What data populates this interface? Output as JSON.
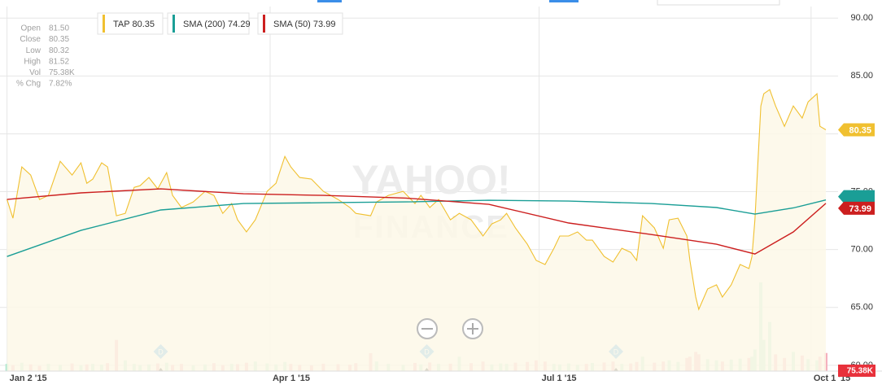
{
  "chart_data": {
    "type": "line",
    "quote": [
      {
        "label": "Open",
        "value": "81.50"
      },
      {
        "label": "Close",
        "value": "80.35"
      },
      {
        "label": "Low",
        "value": "80.32"
      },
      {
        "label": "High",
        "value": "81.52"
      },
      {
        "label": "Vol",
        "value": "75.38K"
      },
      {
        "label": "% Chg",
        "value": "7.82%"
      }
    ],
    "watermark": [
      "YAHOO!",
      "FINANCE"
    ],
    "xlim": [
      "2015-01-01",
      "2015-10-06"
    ],
    "xticks": [
      {
        "value": "2015-01-02",
        "label": "Jan 2 '15"
      },
      {
        "value": "2015-04-01",
        "label": "Apr 1 '15"
      },
      {
        "value": "2015-07-01",
        "label": "Jul 1 '15"
      },
      {
        "value": "2015-10-01",
        "label": "Oct 1 '15"
      }
    ],
    "ylim": [
      59.5,
      91
    ],
    "yticks": [
      {
        "value": 60,
        "label": "60.00"
      },
      {
        "value": 65,
        "label": "65.00"
      },
      {
        "value": 70,
        "label": "70.00"
      },
      {
        "value": 75,
        "label": "75.00"
      },
      {
        "value": 80,
        "label": "80.00"
      },
      {
        "value": 85,
        "label": "85.00"
      },
      {
        "value": 90,
        "label": "90.00"
      }
    ],
    "grid": true,
    "series": [
      {
        "name": "TAP",
        "color": "#f0c030",
        "area_color": "#fdf8e8",
        "x": [
          "2015-01-02",
          "2015-01-04",
          "2015-01-07",
          "2015-01-10",
          "2015-01-13",
          "2015-01-16",
          "2015-01-20",
          "2015-01-24",
          "2015-01-27",
          "2015-01-29",
          "2015-01-31",
          "2015-02-03",
          "2015-02-05",
          "2015-02-08",
          "2015-02-11",
          "2015-02-14",
          "2015-02-16",
          "2015-02-19",
          "2015-02-22",
          "2015-02-25",
          "2015-02-27",
          "2015-03-02",
          "2015-03-06",
          "2015-03-10",
          "2015-03-13",
          "2015-03-16",
          "2015-03-19",
          "2015-03-21",
          "2015-03-24",
          "2015-03-27",
          "2015-03-31",
          "2015-04-03",
          "2015-04-06",
          "2015-04-08",
          "2015-04-11",
          "2015-04-15",
          "2015-04-19",
          "2015-04-24",
          "2015-04-28",
          "2015-04-30",
          "2015-05-05",
          "2015-05-07",
          "2015-05-11",
          "2015-05-16",
          "2015-05-20",
          "2015-05-22",
          "2015-05-25",
          "2015-05-28",
          "2015-06-01",
          "2015-06-04",
          "2015-06-08",
          "2015-06-12",
          "2015-06-15",
          "2015-06-18",
          "2015-06-20",
          "2015-06-23",
          "2015-06-27",
          "2015-06-30",
          "2015-07-03",
          "2015-07-06",
          "2015-07-08",
          "2015-07-11",
          "2015-07-14",
          "2015-07-17",
          "2015-07-19",
          "2015-07-23",
          "2015-07-26",
          "2015-07-29",
          "2015-08-01",
          "2015-08-03",
          "2015-08-05",
          "2015-08-09",
          "2015-08-12",
          "2015-08-14",
          "2015-08-17",
          "2015-08-20",
          "2015-08-21",
          "2015-08-23",
          "2015-08-24",
          "2015-08-27",
          "2015-08-30",
          "2015-09-01",
          "2015-09-04",
          "2015-09-07",
          "2015-09-10",
          "2015-09-11",
          "2015-09-12",
          "2015-09-14",
          "2015-09-15",
          "2015-09-17",
          "2015-09-19",
          "2015-09-22",
          "2015-09-25",
          "2015-09-28",
          "2015-09-30",
          "2015-10-03",
          "2015-10-04",
          "2015-10-06"
        ],
        "values": [
          74.33,
          72.71,
          77.14,
          76.44,
          74.33,
          74.68,
          77.63,
          76.44,
          77.49,
          75.73,
          76.09,
          77.49,
          77.14,
          72.92,
          73.13,
          75.38,
          75.52,
          76.23,
          75.24,
          76.65,
          74.68,
          73.63,
          74.12,
          75.03,
          74.68,
          73.13,
          73.98,
          72.57,
          71.52,
          72.57,
          75.03,
          75.73,
          78.05,
          77.14,
          76.23,
          76.09,
          75.03,
          74.33,
          73.63,
          73.13,
          72.92,
          74.12,
          74.68,
          75.03,
          73.98,
          74.68,
          73.63,
          74.33,
          72.57,
          73.13,
          72.57,
          71.17,
          72.22,
          72.57,
          73.13,
          71.87,
          70.46,
          69.06,
          68.71,
          70.11,
          71.17,
          71.17,
          71.52,
          70.81,
          70.81,
          69.41,
          68.92,
          70.11,
          69.76,
          69.06,
          72.92,
          71.87,
          70.11,
          72.57,
          72.71,
          71.17,
          69.06,
          65.9,
          64.84,
          66.6,
          66.95,
          65.9,
          66.95,
          68.71,
          68.36,
          69.41,
          72.57,
          82.41,
          83.46,
          83.82,
          82.41,
          80.65,
          82.41,
          81.36,
          82.76,
          83.46,
          80.65,
          80.35
        ]
      },
      {
        "name": "SMA (200)",
        "color": "#1a9e96",
        "x": [
          "2015-01-02",
          "2015-01-27",
          "2015-02-23",
          "2015-03-23",
          "2015-04-19",
          "2015-05-17",
          "2015-06-14",
          "2015-07-11",
          "2015-08-08",
          "2015-08-30",
          "2015-09-12",
          "2015-09-25",
          "2015-10-06"
        ],
        "values": [
          69.4,
          71.66,
          73.42,
          73.98,
          74.05,
          74.12,
          74.26,
          74.19,
          73.98,
          73.63,
          73.06,
          73.6,
          74.29
        ]
      },
      {
        "name": "SMA (50)",
        "color": "#cc1f1f",
        "x": [
          "2015-01-02",
          "2015-01-27",
          "2015-02-23",
          "2015-03-23",
          "2015-04-19",
          "2015-05-17",
          "2015-06-14",
          "2015-07-11",
          "2015-08-08",
          "2015-08-30",
          "2015-09-12",
          "2015-09-25",
          "2015-10-06"
        ],
        "values": [
          74.33,
          74.9,
          75.24,
          74.82,
          74.68,
          74.45,
          73.91,
          72.3,
          71.3,
          70.46,
          69.62,
          71.52,
          73.99
        ]
      }
    ],
    "volume": {
      "vlim": [
        0,
        400
      ],
      "up_color": "#b4e8d2",
      "down_color": "#f5b0be",
      "values": [
        30,
        25,
        35,
        28,
        22,
        30,
        26,
        32,
        24,
        28,
        30,
        27,
        33,
        130,
        45,
        30,
        25,
        28,
        32,
        35,
        26,
        30,
        24,
        28,
        33,
        25,
        30,
        29,
        35,
        40,
        32,
        28,
        38,
        30,
        26,
        24,
        31,
        29,
        27,
        33,
        75,
        40,
        30,
        26,
        34,
        28,
        36,
        30,
        31,
        60,
        33,
        40,
        28,
        32,
        30,
        35,
        38,
        45,
        40,
        30,
        28,
        32,
        26,
        30,
        34,
        36,
        40,
        30,
        32,
        38,
        60,
        35,
        40,
        45,
        38,
        55,
        60,
        80,
        70,
        50,
        45,
        40,
        48,
        52,
        55,
        60,
        90,
        370,
        130,
        205,
        70,
        55,
        80,
        65,
        50,
        45,
        60,
        75.38
      ]
    },
    "dividends": {
      "label": "D",
      "color": "#45a9f2",
      "x": [
        "2015-02-23",
        "2015-05-24",
        "2015-07-27"
      ]
    }
  }
}
